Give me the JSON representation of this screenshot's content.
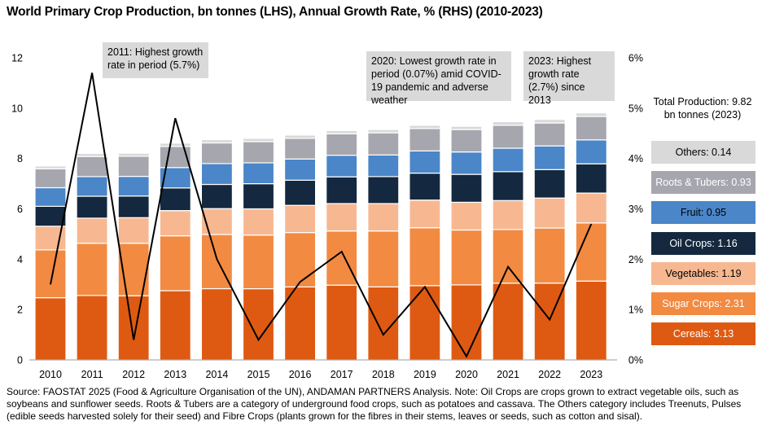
{
  "title": "World Primary Crop Production, bn tonnes (LHS), Annual Growth Rate, % (RHS) (2010-2023)",
  "chart_data": {
    "type": "bar",
    "stacked": true,
    "categories": [
      "2010",
      "2011",
      "2012",
      "2013",
      "2014",
      "2015",
      "2016",
      "2017",
      "2018",
      "2019",
      "2020",
      "2021",
      "2022",
      "2023"
    ],
    "series": [
      {
        "name": "Cereals",
        "color": "#de5a12",
        "values": [
          2.47,
          2.56,
          2.55,
          2.75,
          2.83,
          2.83,
          2.9,
          2.97,
          2.9,
          2.95,
          2.98,
          3.05,
          3.05,
          3.13
        ]
      },
      {
        "name": "Sugar Crops",
        "color": "#f28a42",
        "values": [
          1.9,
          2.07,
          2.08,
          2.18,
          2.15,
          2.13,
          2.16,
          2.15,
          2.22,
          2.3,
          2.18,
          2.13,
          2.19,
          2.31
        ]
      },
      {
        "name": "Vegetables",
        "color": "#f7b891",
        "values": [
          0.94,
          1.0,
          1.02,
          1.0,
          1.03,
          1.04,
          1.08,
          1.09,
          1.09,
          1.1,
          1.1,
          1.15,
          1.19,
          1.19
        ]
      },
      {
        "name": "Oil Crops",
        "color": "#14283f",
        "values": [
          0.79,
          0.87,
          0.86,
          0.9,
          0.96,
          1.0,
          1.0,
          1.06,
          1.07,
          1.07,
          1.11,
          1.15,
          1.13,
          1.16
        ]
      },
      {
        "name": "Fruit",
        "color": "#4a86c8",
        "values": [
          0.74,
          0.78,
          0.78,
          0.81,
          0.83,
          0.83,
          0.84,
          0.86,
          0.86,
          0.88,
          0.89,
          0.93,
          0.94,
          0.95
        ]
      },
      {
        "name": "Roots & Tubers",
        "color": "#a6a6ae",
        "values": [
          0.75,
          0.8,
          0.8,
          0.84,
          0.82,
          0.84,
          0.82,
          0.85,
          0.88,
          0.89,
          0.89,
          0.91,
          0.91,
          0.93
        ]
      },
      {
        "name": "Others",
        "color": "#d9d9d9",
        "values": [
          0.11,
          0.12,
          0.12,
          0.13,
          0.13,
          0.13,
          0.13,
          0.13,
          0.13,
          0.13,
          0.13,
          0.14,
          0.14,
          0.14
        ]
      }
    ],
    "line_series": {
      "name": "Annual Growth Rate",
      "color": "#000000",
      "axis": "right",
      "values": [
        1.5,
        5.7,
        0.4,
        4.8,
        2.0,
        0.4,
        1.55,
        2.15,
        0.5,
        1.45,
        0.07,
        1.85,
        0.8,
        2.7
      ]
    },
    "y_left": {
      "min": 0,
      "max": 12,
      "ticks": [
        "0",
        "2",
        "4",
        "6",
        "8",
        "10",
        "12"
      ]
    },
    "y_right": {
      "min": 0,
      "max": 6,
      "ticks": [
        "0%",
        "1%",
        "2%",
        "3%",
        "4%",
        "5%",
        "6%"
      ]
    },
    "grid": false,
    "legend_position": "right"
  },
  "annotations": {
    "a2011": "2011: Highest growth rate in period (5.7%)",
    "a2020": "2020: Lowest growth rate in period (0.07%) amid COVID-19 pandemic and adverse weather",
    "a2023": "2023: Highest growth rate (2.7%) since 2013"
  },
  "total": "Total Production: 9.82 bn tonnes (2023)",
  "legend": [
    {
      "label": "Others: 0.14",
      "bg": "#d9d9d9",
      "fg": "#000000"
    },
    {
      "label": "Roots & Tubers: 0.93",
      "bg": "#a6a6ae",
      "fg": "#ffffff"
    },
    {
      "label": "Fruit: 0.95",
      "bg": "#4a86c8",
      "fg": "#000000"
    },
    {
      "label": "Oil Crops: 1.16",
      "bg": "#14283f",
      "fg": "#ffffff"
    },
    {
      "label": "Vegetables: 1.19",
      "bg": "#f7b891",
      "fg": "#000000"
    },
    {
      "label": "Sugar Crops: 2.31",
      "bg": "#f28a42",
      "fg": "#ffffff"
    },
    {
      "label": "Cereals: 3.13",
      "bg": "#de5a12",
      "fg": "#ffffff"
    }
  ],
  "source": "Source: FAOSTAT 2025 (Food & Agriculture Organisation of the UN), ANDAMAN PARTNERS Analysis. Note: Oil Crops are crops grown to extract vegetable oils, such as soybeans and sunflower seeds. Roots & Tubers are a category of underground food crops, such as potatoes and cassava. The Others category includes Treenuts, Pulses (edible seeds harvested solely for their seed) and Fibre Crops (plants grown for the fibres in their stems, leaves or seeds, such as cotton and sisal)."
}
